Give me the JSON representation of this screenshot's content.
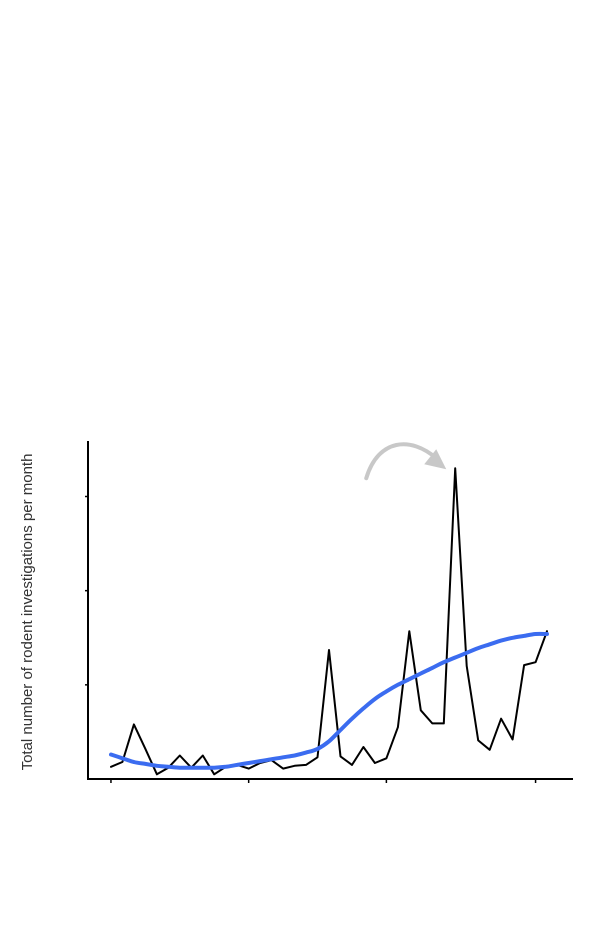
{
  "chart_data": {
    "type": "line",
    "title": "",
    "xlabel": "",
    "ylabel": "Total number of rodent investigations per month",
    "x": [
      0,
      1,
      2,
      3,
      4,
      5,
      6,
      7,
      8,
      9,
      10,
      11,
      12,
      13,
      14,
      15,
      16,
      17,
      18,
      19,
      20,
      21,
      22,
      23,
      24,
      25,
      26,
      27,
      28,
      29,
      30,
      31,
      32,
      33,
      34,
      35,
      36,
      37,
      38
    ],
    "xlim": [
      -2,
      40
    ],
    "ylim": [
      0,
      360
    ],
    "grid": false,
    "series": [
      {
        "values": [
          13,
          18,
          58,
          32,
          5,
          12,
          25,
          12,
          25,
          5,
          13,
          15,
          11,
          17,
          20,
          11,
          14,
          15,
          23,
          137,
          24,
          15,
          34,
          17,
          22,
          55,
          157,
          73,
          59,
          59,
          330,
          120,
          41,
          31,
          64,
          42,
          121,
          124,
          157
        ],
        "color": "#000000"
      },
      {
        "smoothed": true,
        "values": [
          26,
          22,
          18,
          16,
          14,
          13,
          12,
          12,
          12,
          12,
          13,
          15,
          17,
          19,
          21,
          23,
          25,
          28,
          32,
          40,
          52,
          64,
          75,
          85,
          93,
          100,
          106,
          112,
          118,
          124,
          129,
          134,
          139,
          143,
          147,
          150,
          152,
          154,
          154
        ],
        "color": "#3b6cf0"
      }
    ],
    "annotation": {
      "type": "curved-arrow",
      "target_x": 30,
      "target_y": 330,
      "color": "#c8c8c8"
    }
  }
}
